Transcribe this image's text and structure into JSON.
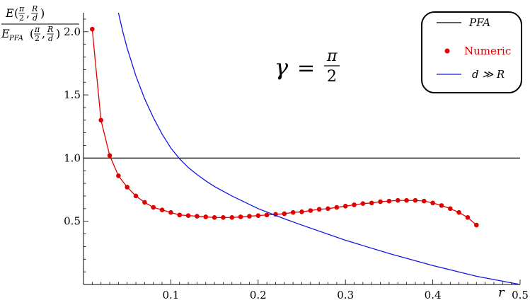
{
  "chart_data": {
    "type": "line",
    "ylabel": {
      "numerator": "E(π/2, R/d)",
      "denominator": "E_PFA(π/2, R/d)",
      "num_main": "E",
      "den_main": "E",
      "den_sub": "PFA",
      "frac1_top": "π",
      "frac1_bottom": "2",
      "frac2_top": "R",
      "frac2_bottom": "d"
    },
    "xlabel": "r",
    "annotation": {
      "lhs": "γ",
      "eq": "=",
      "frac_top": "π",
      "frac_bottom": "2"
    },
    "xlim": [
      0,
      0.5
    ],
    "ylim": [
      0,
      2.15
    ],
    "x_ticks": [
      "0.1",
      "0.2",
      "0.3",
      "0.4",
      "0.5"
    ],
    "y_ticks": [
      "0.5",
      "1.0",
      "1.5",
      "2.0"
    ],
    "grid": false,
    "legend_position": "top-right",
    "series": [
      {
        "name": "PFA",
        "kind": "line",
        "color": "#000000",
        "x": [
          0,
          0.5
        ],
        "y": [
          1.0,
          1.0
        ]
      },
      {
        "name": "Numeric",
        "kind": "points-and-line",
        "color": "#e00000",
        "x": [
          0.01,
          0.02,
          0.03,
          0.04,
          0.05,
          0.06,
          0.07,
          0.08,
          0.09,
          0.1,
          0.11,
          0.12,
          0.13,
          0.14,
          0.15,
          0.16,
          0.17,
          0.18,
          0.19,
          0.2,
          0.21,
          0.22,
          0.23,
          0.24,
          0.25,
          0.26,
          0.27,
          0.28,
          0.29,
          0.3,
          0.31,
          0.32,
          0.33,
          0.34,
          0.35,
          0.36,
          0.37,
          0.38,
          0.39,
          0.4,
          0.41,
          0.42,
          0.43,
          0.44,
          0.45
        ],
        "y": [
          2.02,
          1.3,
          1.02,
          0.86,
          0.77,
          0.7,
          0.65,
          0.61,
          0.59,
          0.57,
          0.55,
          0.545,
          0.54,
          0.535,
          0.53,
          0.53,
          0.53,
          0.535,
          0.54,
          0.545,
          0.55,
          0.555,
          0.56,
          0.57,
          0.575,
          0.585,
          0.595,
          0.6,
          0.61,
          0.62,
          0.63,
          0.64,
          0.645,
          0.655,
          0.66,
          0.665,
          0.665,
          0.665,
          0.66,
          0.645,
          0.625,
          0.6,
          0.57,
          0.53,
          0.47
        ]
      },
      {
        "name": "d ≫ R",
        "kind": "line",
        "color": "#1515e0",
        "x": [
          0.04,
          0.045,
          0.05,
          0.06,
          0.07,
          0.08,
          0.09,
          0.1,
          0.11,
          0.12,
          0.13,
          0.14,
          0.15,
          0.17,
          0.2,
          0.23,
          0.25,
          0.3,
          0.35,
          0.4,
          0.45,
          0.5
        ],
        "y": [
          2.15,
          2.0,
          1.87,
          1.65,
          1.47,
          1.32,
          1.19,
          1.08,
          0.995,
          0.925,
          0.87,
          0.82,
          0.775,
          0.7,
          0.6,
          0.52,
          0.47,
          0.35,
          0.245,
          0.15,
          0.065,
          0.0
        ]
      }
    ]
  }
}
